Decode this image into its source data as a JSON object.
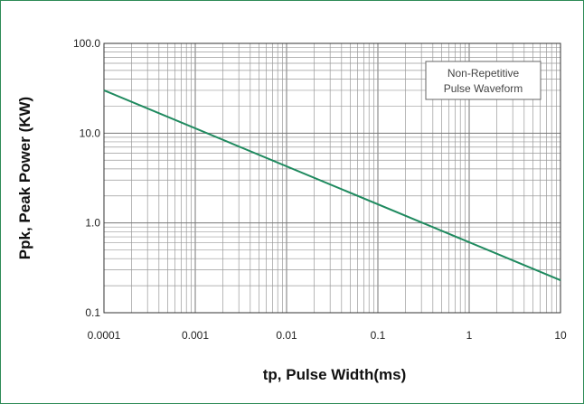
{
  "chart_data": {
    "type": "line",
    "title": "",
    "xlabel": "tp, Pulse Width(ms)",
    "ylabel": "Ppk, Peak Power (KW)",
    "x_scale": "log",
    "y_scale": "log",
    "xlim": [
      0.0001,
      10
    ],
    "ylim": [
      0.1,
      100
    ],
    "x_ticks": [
      "0.0001",
      "0.001",
      "0.01",
      "0.1",
      "1",
      "10"
    ],
    "y_ticks": [
      "0.1",
      "1.0",
      "10.0",
      "100.0"
    ],
    "grid": true,
    "annotation": [
      "Non-Repetitive",
      "Pulse Waveform"
    ],
    "line_color": "#1f8a5f",
    "series": [
      {
        "x": [
          0.0001,
          10
        ],
        "y": [
          30,
          0.23
        ]
      }
    ]
  }
}
